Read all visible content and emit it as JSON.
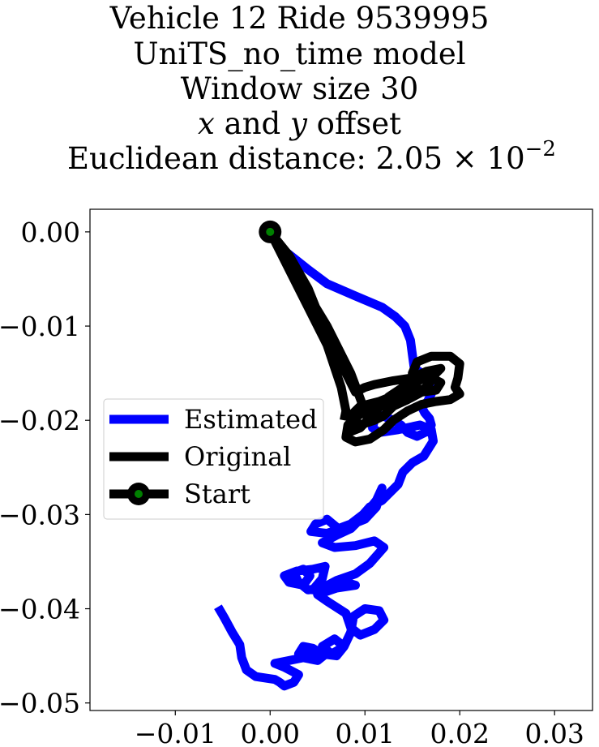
{
  "title": {
    "line1": "Vehicle 12 Ride 9539995",
    "line2": "UniTS_no_time model",
    "line3": "Window size 30",
    "line4_x": "x",
    "line4_and": " and ",
    "line4_y": "y",
    "line4_rest": " offset",
    "line5_prefix": "Euclidean distance: 2.05 × 10",
    "line5_exp": "−2"
  },
  "chart_data": {
    "type": "line",
    "xlim": [
      -0.019,
      0.034
    ],
    "ylim": [
      -0.0508,
      0.0024
    ],
    "xticks": [
      -0.01,
      0.0,
      0.01,
      0.02,
      0.03
    ],
    "xtick_labels": [
      "−0.01",
      "0.00",
      "0.01",
      "0.02",
      "0.03"
    ],
    "yticks": [
      0.0,
      -0.01,
      -0.02,
      -0.03,
      -0.04,
      -0.05
    ],
    "ytick_labels": [
      "0.00",
      "−0.01",
      "−0.02",
      "−0.03",
      "−0.04",
      "−0.05"
    ],
    "legend_position": "center-left",
    "series": [
      {
        "name": "Estimated",
        "color": "#0000ff",
        "points": [
          [
            0.0,
            0.0
          ],
          [
            0.0015,
            -0.002
          ],
          [
            0.004,
            -0.004
          ],
          [
            0.006,
            -0.0055
          ],
          [
            0.009,
            -0.0068
          ],
          [
            0.0118,
            -0.008
          ],
          [
            0.0132,
            -0.009
          ],
          [
            0.0142,
            -0.01
          ],
          [
            0.0148,
            -0.0115
          ],
          [
            0.015,
            -0.013
          ],
          [
            0.0152,
            -0.0145
          ],
          [
            0.016,
            -0.015
          ],
          [
            0.0168,
            -0.016
          ],
          [
            0.017,
            -0.0172
          ],
          [
            0.0166,
            -0.018
          ],
          [
            0.016,
            -0.0186
          ],
          [
            0.0163,
            -0.0192
          ],
          [
            0.0168,
            -0.0198
          ],
          [
            0.017,
            -0.0205
          ],
          [
            0.0165,
            -0.0212
          ],
          [
            0.0155,
            -0.0217
          ],
          [
            0.0145,
            -0.0213
          ],
          [
            0.0138,
            -0.0205
          ],
          [
            0.013,
            -0.02
          ],
          [
            0.0118,
            -0.0195
          ],
          [
            0.011,
            -0.02
          ],
          [
            0.0108,
            -0.0208
          ],
          [
            0.0115,
            -0.0213
          ],
          [
            0.0135,
            -0.021
          ],
          [
            0.0158,
            -0.0205
          ],
          [
            0.017,
            -0.021
          ],
          [
            0.0172,
            -0.0222
          ],
          [
            0.0162,
            -0.0238
          ],
          [
            0.015,
            -0.0245
          ],
          [
            0.014,
            -0.0255
          ],
          [
            0.0135,
            -0.0268
          ],
          [
            0.0128,
            -0.0275
          ],
          [
            0.0118,
            -0.0285
          ],
          [
            0.0105,
            -0.0292
          ],
          [
            0.0098,
            -0.03
          ],
          [
            0.0085,
            -0.031
          ],
          [
            0.0072,
            -0.0315
          ],
          [
            0.006,
            -0.0305
          ],
          [
            0.0048,
            -0.031
          ],
          [
            0.0043,
            -0.0318
          ],
          [
            0.006,
            -0.032
          ],
          [
            0.008,
            -0.0313
          ],
          [
            0.01,
            -0.0305
          ],
          [
            0.0112,
            -0.0292
          ],
          [
            0.0118,
            -0.0272
          ],
          [
            0.0112,
            -0.0285
          ],
          [
            0.01,
            -0.03
          ],
          [
            0.0085,
            -0.0315
          ],
          [
            0.007,
            -0.0322
          ],
          [
            0.0055,
            -0.033
          ],
          [
            0.0068,
            -0.0335
          ],
          [
            0.009,
            -0.0333
          ],
          [
            0.011,
            -0.0328
          ],
          [
            0.012,
            -0.0335
          ],
          [
            0.0105,
            -0.0352
          ],
          [
            0.009,
            -0.0363
          ],
          [
            0.007,
            -0.037
          ],
          [
            0.0055,
            -0.0378
          ],
          [
            0.004,
            -0.038
          ],
          [
            0.003,
            -0.0372
          ],
          [
            0.0025,
            -0.0362
          ],
          [
            0.0035,
            -0.0358
          ],
          [
            0.0042,
            -0.0365
          ],
          [
            0.0035,
            -0.0375
          ],
          [
            0.002,
            -0.0372
          ],
          [
            0.0015,
            -0.0365
          ],
          [
            0.0028,
            -0.036
          ],
          [
            0.0045,
            -0.0358
          ],
          [
            0.0058,
            -0.0355
          ],
          [
            0.0055,
            -0.0368
          ],
          [
            0.0045,
            -0.038
          ],
          [
            0.006,
            -0.0378
          ],
          [
            0.008,
            -0.0372
          ],
          [
            0.009,
            -0.0375
          ],
          [
            0.007,
            -0.0378
          ],
          [
            0.005,
            -0.0385
          ],
          [
            0.006,
            -0.0392
          ],
          [
            0.008,
            -0.0405
          ],
          [
            0.0085,
            -0.042
          ],
          [
            0.0095,
            -0.0428
          ],
          [
            0.011,
            -0.0422
          ],
          [
            0.012,
            -0.0412
          ],
          [
            0.0115,
            -0.0402
          ],
          [
            0.01,
            -0.04
          ],
          [
            0.0088,
            -0.0408
          ],
          [
            0.0085,
            -0.0425
          ],
          [
            0.0078,
            -0.044
          ],
          [
            0.0065,
            -0.0448
          ],
          [
            0.0055,
            -0.044
          ],
          [
            0.0068,
            -0.0432
          ],
          [
            0.0078,
            -0.044
          ],
          [
            0.007,
            -0.045
          ],
          [
            0.0055,
            -0.0448
          ],
          [
            0.0045,
            -0.0442
          ],
          [
            0.0035,
            -0.044
          ],
          [
            0.003,
            -0.0448
          ],
          [
            0.0045,
            -0.045
          ],
          [
            0.006,
            -0.0447
          ],
          [
            0.005,
            -0.0455
          ],
          [
            0.0035,
            -0.0452
          ],
          [
            0.002,
            -0.0455
          ],
          [
            0.0005,
            -0.0458
          ],
          [
            0.0015,
            -0.0462
          ],
          [
            0.003,
            -0.047
          ],
          [
            0.0025,
            -0.0478
          ],
          [
            0.0015,
            -0.0482
          ],
          [
            0.001,
            -0.0478
          ],
          [
            0.0005,
            -0.0475
          ],
          [
            -0.0015,
            -0.0472
          ],
          [
            -0.0025,
            -0.0465
          ],
          [
            -0.003,
            -0.0452
          ],
          [
            -0.0032,
            -0.0438
          ],
          [
            -0.004,
            -0.0425
          ],
          [
            -0.0048,
            -0.041
          ],
          [
            -0.0055,
            -0.0398
          ]
        ]
      },
      {
        "name": "Original",
        "color": "#000000",
        "points": [
          [
            0.0,
            0.0
          ],
          [
            0.003,
            -0.005
          ],
          [
            0.006,
            -0.01
          ],
          [
            0.0085,
            -0.015
          ],
          [
            0.0098,
            -0.0185
          ],
          [
            0.009,
            -0.02
          ],
          [
            0.0085,
            -0.0212
          ],
          [
            0.0095,
            -0.0208
          ],
          [
            0.011,
            -0.0192
          ],
          [
            0.0125,
            -0.0175
          ],
          [
            0.014,
            -0.0165
          ],
          [
            0.0155,
            -0.0158
          ],
          [
            0.017,
            -0.0155
          ],
          [
            0.018,
            -0.016
          ],
          [
            0.0175,
            -0.0168
          ],
          [
            0.016,
            -0.017
          ],
          [
            0.0145,
            -0.0178
          ],
          [
            0.013,
            -0.0185
          ],
          [
            0.012,
            -0.0195
          ],
          [
            0.011,
            -0.02
          ],
          [
            0.0095,
            -0.0205
          ],
          [
            0.0085,
            -0.0195
          ],
          [
            0.0095,
            -0.0185
          ],
          [
            0.0115,
            -0.018
          ],
          [
            0.014,
            -0.017
          ],
          [
            0.0155,
            -0.016
          ],
          [
            0.015,
            -0.015
          ],
          [
            0.0155,
            -0.0138
          ],
          [
            0.017,
            -0.0132
          ],
          [
            0.019,
            -0.0132
          ],
          [
            0.02,
            -0.014
          ],
          [
            0.0198,
            -0.0155
          ],
          [
            0.0195,
            -0.0165
          ],
          [
            0.02,
            -0.0172
          ],
          [
            0.019,
            -0.0178
          ],
          [
            0.0175,
            -0.018
          ],
          [
            0.016,
            -0.0183
          ],
          [
            0.0145,
            -0.019
          ],
          [
            0.013,
            -0.02
          ],
          [
            0.012,
            -0.021
          ],
          [
            0.0105,
            -0.022
          ],
          [
            0.009,
            -0.0223
          ],
          [
            0.008,
            -0.0218
          ],
          [
            0.0082,
            -0.0205
          ],
          [
            0.0092,
            -0.0195
          ],
          [
            0.011,
            -0.0188
          ],
          [
            0.013,
            -0.018
          ],
          [
            0.015,
            -0.0172
          ],
          [
            0.0165,
            -0.0165
          ],
          [
            0.0175,
            -0.015
          ],
          [
            0.018,
            -0.0145
          ],
          [
            0.0165,
            -0.0148
          ],
          [
            0.015,
            -0.0155
          ],
          [
            0.013,
            -0.0158
          ],
          [
            0.011,
            -0.0162
          ],
          [
            0.01,
            -0.0165
          ],
          [
            0.009,
            -0.017
          ],
          [
            0.008,
            -0.015
          ],
          [
            0.006,
            -0.011
          ],
          [
            0.004,
            -0.006
          ],
          [
            0.002,
            -0.0025
          ],
          [
            0.0,
            0.0
          ],
          [
            0.003,
            -0.006
          ],
          [
            0.006,
            -0.012
          ],
          [
            0.0075,
            -0.0165
          ],
          [
            0.008,
            -0.019
          ],
          [
            0.0078,
            -0.02
          ]
        ]
      }
    ],
    "start_point": {
      "name": "Start",
      "x": 0.0,
      "y": 0.0,
      "marker_color": "#000000",
      "fill_color": "#008000"
    }
  }
}
